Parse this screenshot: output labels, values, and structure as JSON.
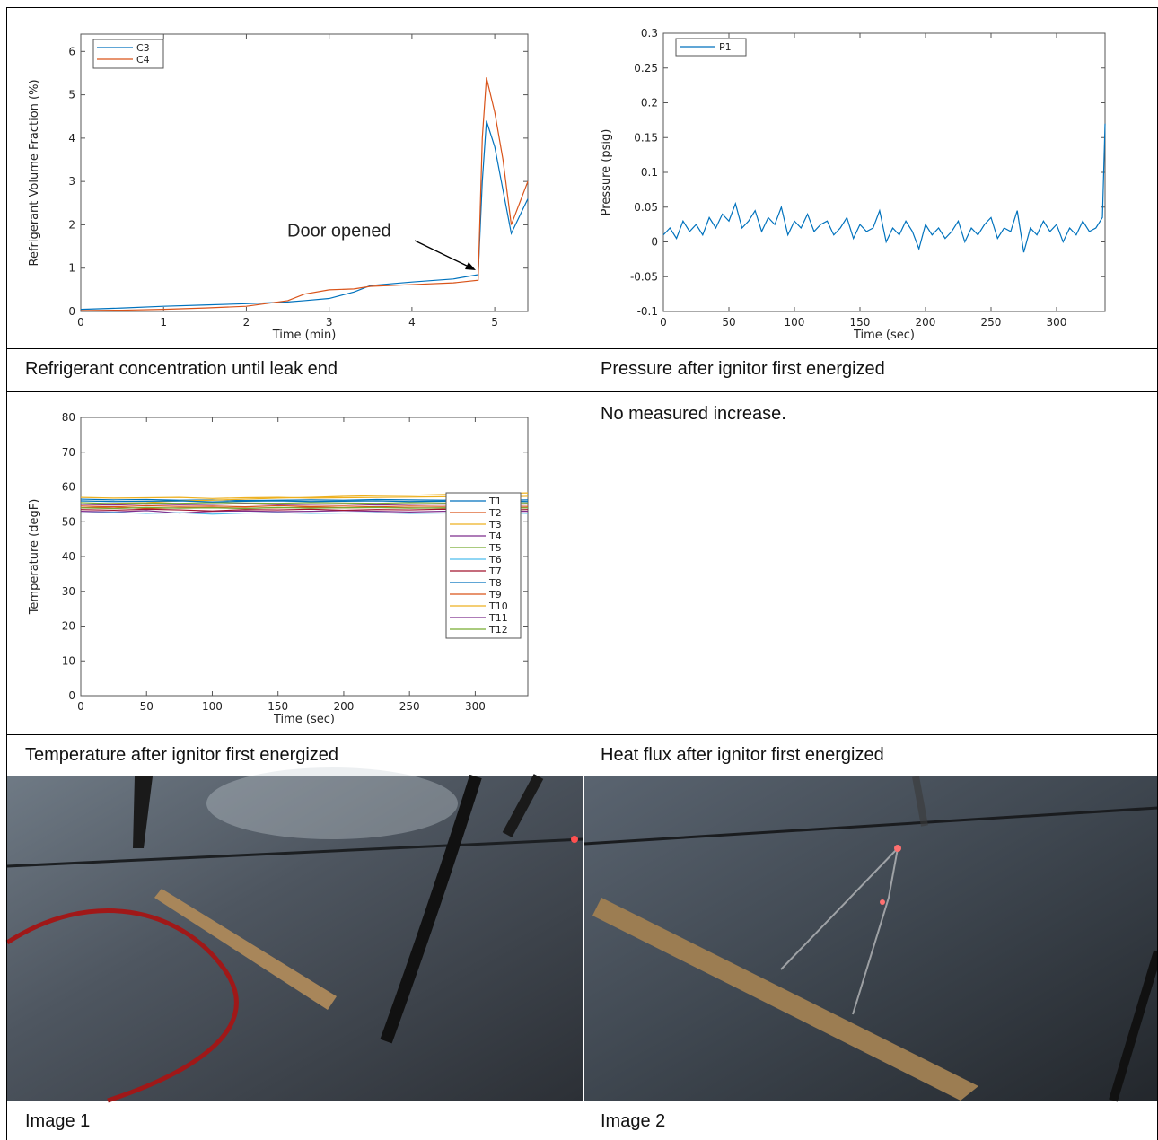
{
  "chart_data": [
    {
      "type": "line",
      "xlabel": "Time (min)",
      "ylabel": "Refrigerant Volume Fraction (%)",
      "x": [
        0,
        0.5,
        1,
        1.5,
        2,
        2.5,
        2.7,
        3,
        3.3,
        3.5,
        4,
        4.5,
        4.8,
        4.85,
        4.9,
        4.95,
        5.0,
        5.1,
        5.2,
        5.3,
        5.4
      ],
      "series": [
        {
          "name": "C3",
          "color": "#0072bd",
          "values": [
            0.05,
            0.08,
            0.12,
            0.15,
            0.18,
            0.22,
            0.25,
            0.3,
            0.45,
            0.6,
            0.68,
            0.75,
            0.85,
            3.0,
            4.4,
            4.1,
            3.8,
            2.8,
            1.8,
            2.2,
            2.6
          ]
        },
        {
          "name": "C4",
          "color": "#d95319",
          "values": [
            0.02,
            0.03,
            0.05,
            0.08,
            0.12,
            0.25,
            0.4,
            0.5,
            0.52,
            0.58,
            0.62,
            0.66,
            0.72,
            4.0,
            5.4,
            5.0,
            4.6,
            3.5,
            2.0,
            2.5,
            3.0
          ]
        }
      ],
      "xlim": [
        0,
        5.4
      ],
      "xticks": [
        0,
        1,
        2,
        3,
        4,
        5
      ],
      "ylim": [
        0,
        6.4
      ],
      "yticks": [
        0,
        1,
        2,
        3,
        4,
        5,
        6
      ],
      "legend": "upper left",
      "grid": false,
      "annotation": "Door opened"
    },
    {
      "type": "line",
      "xlabel": "Time (sec)",
      "ylabel": "Pressure (psig)",
      "x": [
        0,
        5,
        10,
        15,
        20,
        25,
        30,
        35,
        40,
        45,
        50,
        55,
        60,
        65,
        70,
        75,
        80,
        85,
        90,
        95,
        100,
        105,
        110,
        115,
        120,
        125,
        130,
        135,
        140,
        145,
        150,
        155,
        160,
        165,
        170,
        175,
        180,
        185,
        190,
        195,
        200,
        205,
        210,
        215,
        220,
        225,
        230,
        235,
        240,
        245,
        250,
        255,
        260,
        265,
        270,
        275,
        280,
        285,
        290,
        295,
        300,
        305,
        310,
        315,
        320,
        325,
        330,
        335,
        337
      ],
      "series": [
        {
          "name": "P1",
          "color": "#0072bd",
          "values": [
            0.01,
            0.02,
            0.005,
            0.03,
            0.015,
            0.025,
            0.01,
            0.035,
            0.02,
            0.04,
            0.03,
            0.055,
            0.02,
            0.03,
            0.045,
            0.015,
            0.035,
            0.025,
            0.05,
            0.01,
            0.03,
            0.02,
            0.04,
            0.015,
            0.025,
            0.03,
            0.01,
            0.02,
            0.035,
            0.005,
            0.025,
            0.015,
            0.02,
            0.045,
            0.0,
            0.02,
            0.01,
            0.03,
            0.015,
            -0.01,
            0.025,
            0.01,
            0.02,
            0.005,
            0.015,
            0.03,
            0.0,
            0.02,
            0.01,
            0.025,
            0.035,
            0.005,
            0.02,
            0.015,
            0.045,
            -0.015,
            0.02,
            0.01,
            0.03,
            0.015,
            0.025,
            0.0,
            0.02,
            0.01,
            0.03,
            0.015,
            0.02,
            0.035,
            0.17
          ]
        }
      ],
      "xlim": [
        0,
        337
      ],
      "xticks": [
        0,
        50,
        100,
        150,
        200,
        250,
        300
      ],
      "ylim": [
        -0.1,
        0.3
      ],
      "yticks": [
        -0.1,
        -0.05,
        0,
        0.05,
        0.1,
        0.15,
        0.2,
        0.25,
        0.3
      ],
      "legend": "upper left",
      "grid": false
    },
    {
      "type": "line",
      "xlabel": "Time (sec)",
      "ylabel": "Temperature (degF)",
      "x": [
        0,
        25,
        50,
        75,
        100,
        125,
        150,
        175,
        200,
        225,
        250,
        275,
        300,
        325,
        340
      ],
      "series": [
        {
          "name": "T1",
          "color": "#0072bd",
          "values": [
            56.5,
            56.3,
            56.4,
            56.2,
            56.3,
            56.1,
            56.2,
            56.3,
            56.2,
            56.4,
            56.3,
            56.2,
            56.3,
            56.2,
            56.3
          ]
        },
        {
          "name": "T2",
          "color": "#d95319",
          "values": [
            54,
            54.2,
            53.8,
            54,
            54.1,
            53.9,
            54,
            54.2,
            54,
            54.1,
            54,
            53.9,
            54,
            54.1,
            54
          ]
        },
        {
          "name": "T3",
          "color": "#edb120",
          "values": [
            55,
            55.3,
            55.5,
            56,
            56.2,
            56.5,
            56.8,
            57,
            57.3,
            57.5,
            57.6,
            57.8,
            58,
            58.2,
            58.3
          ]
        },
        {
          "name": "T4",
          "color": "#7e2f8e",
          "values": [
            53,
            52.8,
            53.2,
            52.5,
            53,
            53.1,
            52.9,
            53,
            53.2,
            53,
            52.8,
            53,
            53.1,
            53,
            53
          ]
        },
        {
          "name": "T5",
          "color": "#77ac30",
          "values": [
            55.5,
            55.2,
            55.4,
            55.3,
            55.5,
            55.4,
            55.3,
            55.5,
            55.4,
            55.3,
            55.5,
            55.4,
            55.3,
            55.5,
            55.4
          ]
        },
        {
          "name": "T6",
          "color": "#4dbeee",
          "values": [
            52.5,
            52.7,
            52.4,
            52.6,
            52.2,
            52.5,
            52.6,
            52.4,
            52.5,
            52.6,
            52.4,
            52.5,
            52.6,
            52.5,
            52.4
          ]
        },
        {
          "name": "T7",
          "color": "#a2142f",
          "values": [
            53.5,
            53.3,
            53.6,
            53.4,
            53.1,
            53.5,
            53.4,
            53.6,
            53.3,
            53.5,
            53.4,
            53.6,
            53.5,
            53.4,
            53.5
          ]
        },
        {
          "name": "T8",
          "color": "#0072bd",
          "values": [
            56,
            55.8,
            55.9,
            56,
            55.7,
            55.9,
            56,
            55.8,
            55.9,
            56,
            55.8,
            55.9,
            56,
            55.9,
            55.8
          ]
        },
        {
          "name": "T9",
          "color": "#d95319",
          "values": [
            54.5,
            54.3,
            54.6,
            54.4,
            54.5,
            54.3,
            54.6,
            54.4,
            54.5,
            54.3,
            54.5,
            54.4,
            54.6,
            54.5,
            54.4
          ]
        },
        {
          "name": "T10",
          "color": "#edb120",
          "values": [
            57,
            56.8,
            56.9,
            57,
            56.7,
            56.9,
            57,
            56.8,
            56.9,
            57,
            57.1,
            57.2,
            57.3,
            57.2,
            57.3
          ]
        },
        {
          "name": "T11",
          "color": "#7e2f8e",
          "values": [
            55,
            54.8,
            55.1,
            54.9,
            55,
            55.2,
            54.9,
            55,
            55.1,
            54.8,
            55,
            55.1,
            54.9,
            55,
            55.1
          ]
        },
        {
          "name": "T12",
          "color": "#77ac30",
          "values": [
            54,
            53.8,
            54.1,
            53.9,
            54,
            53.8,
            54.1,
            53.9,
            54,
            54.1,
            53.9,
            54,
            54.1,
            53.9,
            54
          ]
        }
      ],
      "xlim": [
        0,
        340
      ],
      "xticks": [
        0,
        50,
        100,
        150,
        200,
        250,
        300
      ],
      "ylim": [
        0,
        80
      ],
      "yticks": [
        0,
        10,
        20,
        30,
        40,
        50,
        60,
        70,
        80
      ],
      "legend": "right",
      "grid": false
    }
  ],
  "captions": [
    "Refrigerant concentration until leak end",
    "Pressure after ignitor first energized",
    "Temperature after ignitor first energized",
    "Heat flux after ignitor first energized",
    "Image 1",
    "Image 2"
  ],
  "note": "No measured increase."
}
